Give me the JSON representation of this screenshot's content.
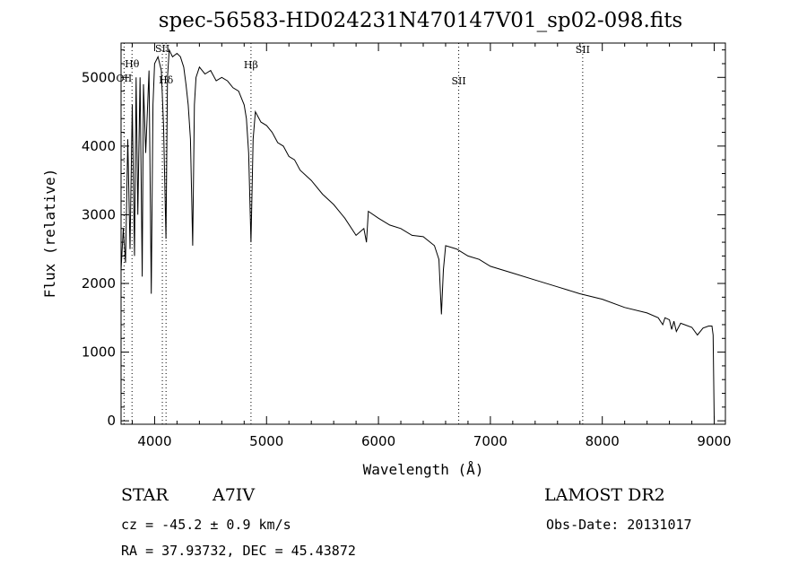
{
  "chart_data": {
    "type": "line",
    "title": "spec-56583-HD024231N470147V01_sp02-098.fits",
    "xlabel": "Wavelength (Å)",
    "ylabel": "Flux (relative)",
    "xlim": [
      3700,
      9100
    ],
    "ylim": [
      -50,
      5500
    ],
    "xticks": [
      4000,
      5000,
      6000,
      7000,
      8000,
      9000
    ],
    "yticks": [
      0,
      1000,
      2000,
      3000,
      4000,
      5000
    ],
    "grid": false,
    "series": [
      {
        "x": [
          3700,
          3720,
          3740,
          3760,
          3780,
          3800,
          3820,
          3835,
          3850,
          3870,
          3889,
          3900,
          3920,
          3950,
          3970,
          3985,
          4000,
          4030,
          4060,
          4080,
          4101,
          4115,
          4130,
          4160,
          4200,
          4230,
          4260,
          4280,
          4300,
          4320,
          4340,
          4355,
          4370,
          4400,
          4450,
          4500,
          4550,
          4600,
          4650,
          4700,
          4750,
          4800,
          4820,
          4840,
          4861,
          4880,
          4900,
          4950,
          5000,
          5050,
          5100,
          5150,
          5200,
          5250,
          5300,
          5400,
          5500,
          5600,
          5700,
          5800,
          5870,
          5893,
          5910,
          6000,
          6100,
          6200,
          6300,
          6400,
          6500,
          6540,
          6563,
          6580,
          6600,
          6700,
          6800,
          6900,
          7000,
          7200,
          7400,
          7600,
          7800,
          8000,
          8200,
          8400,
          8500,
          8540,
          8560,
          8600,
          8620,
          8640,
          8662,
          8700,
          8800,
          8850,
          8900,
          8950,
          8980,
          8990,
          9000
        ],
        "y": [
          2200,
          2800,
          2300,
          4100,
          2500,
          4600,
          2400,
          5000,
          3000,
          5000,
          2100,
          4900,
          3900,
          5100,
          1850,
          4600,
          5200,
          5300,
          5100,
          4300,
          2650,
          5000,
          5400,
          5300,
          5350,
          5300,
          5150,
          4900,
          4600,
          4100,
          2550,
          4600,
          5000,
          5150,
          5050,
          5100,
          4950,
          5000,
          4950,
          4850,
          4800,
          4600,
          4400,
          3900,
          2600,
          4100,
          4500,
          4350,
          4300,
          4200,
          4050,
          4000,
          3850,
          3800,
          3650,
          3500,
          3300,
          3150,
          2950,
          2700,
          2800,
          2600,
          3050,
          2950,
          2850,
          2800,
          2700,
          2680,
          2550,
          2350,
          1550,
          2200,
          2550,
          2500,
          2400,
          2350,
          2250,
          2150,
          2050,
          1950,
          1850,
          1770,
          1650,
          1570,
          1500,
          1400,
          1500,
          1470,
          1330,
          1450,
          1300,
          1420,
          1360,
          1250,
          1350,
          1380,
          1380,
          1250,
          20
        ]
      }
    ],
    "annotations": [
      {
        "label": "OII",
        "x": 3727
      },
      {
        "label": "Hθ",
        "x": 3798
      },
      {
        "label": "SII",
        "x": 4069
      },
      {
        "label": "Hδ",
        "x": 4102
      },
      {
        "label": "Hβ",
        "x": 4861
      },
      {
        "label": "SII",
        "x": 6717
      },
      {
        "label": "SII",
        "x": 7825
      }
    ]
  },
  "info": {
    "star_type": "STAR",
    "star_class": "A7IV",
    "survey": "LAMOST DR2",
    "cz": "cz = -45.2 ± 0.9 km/s",
    "obs_date": "Obs-Date: 20131017",
    "radec": "RA =  37.93732, DEC =  45.43872"
  }
}
